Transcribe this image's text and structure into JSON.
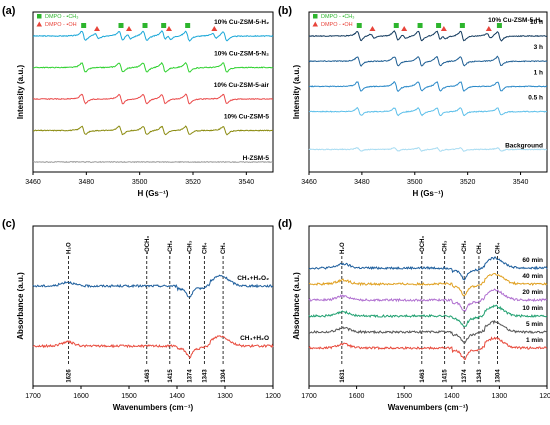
{
  "chart_data": [
    {
      "panel": "a",
      "type": "line",
      "xlabel": "H (Gs⁻¹)",
      "ylabel": "Intensity (a.u.)",
      "xlim": [
        3460,
        3550
      ],
      "xticks": [
        3460,
        3480,
        3500,
        3520,
        3540
      ],
      "legend": [
        {
          "label": "DMPO - •CH₃",
          "marker": "square",
          "color": "#2db52d"
        },
        {
          "label": "DMPO - •OH",
          "marker": "triangle",
          "color": "#e8443a"
        }
      ],
      "legend_position": "top-left",
      "ch3_marker_x": [
        3479,
        3493,
        3502,
        3509,
        3518
      ],
      "oh_marker_x": [
        3484,
        3496,
        3511,
        3528
      ],
      "series": [
        {
          "name": "10% Cu-ZSM-5-H₂",
          "color": "#1aa7d8",
          "offset": 4,
          "amp": 1.0,
          "line_x": [
            3479,
            3493,
            3502,
            3509,
            3518,
            3532
          ],
          "oh_x": [
            3484,
            3496,
            3511,
            3528
          ],
          "oh_amp": 0.55
        },
        {
          "name": "10% Cu-ZSM-5-N₂",
          "color": "#2fd12f",
          "offset": 3,
          "amp": 1.0,
          "line_x": [
            3479,
            3493,
            3502,
            3509,
            3518,
            3532
          ],
          "oh_x": [],
          "oh_amp": 0
        },
        {
          "name": "10% Cu-ZSM-5-air",
          "color": "#ea4a4a",
          "offset": 2,
          "amp": 1.0,
          "line_x": [
            3479,
            3493,
            3502,
            3509,
            3518,
            3532
          ],
          "oh_x": [],
          "oh_amp": 0
        },
        {
          "name": "10% Cu-ZSM-5",
          "color": "#8b8b10",
          "offset": 1,
          "amp": 0.9,
          "line_x": [
            3479,
            3493,
            3502,
            3509,
            3518,
            3532
          ],
          "oh_x": [],
          "oh_amp": 0
        },
        {
          "name": "H-ZSM-5",
          "color": "#9a9a9a",
          "offset": 0,
          "amp": 0.0,
          "line_x": [],
          "oh_x": [],
          "oh_amp": 0
        }
      ]
    },
    {
      "panel": "b",
      "type": "line",
      "title": "10% Cu-ZSM-5-H₂",
      "xlabel": "H (Gs⁻¹)",
      "ylabel": "Intensity (a.u.)",
      "xlim": [
        3460,
        3550
      ],
      "xticks": [
        3460,
        3480,
        3500,
        3520,
        3540
      ],
      "legend": [
        {
          "label": "DMPO - •CH₃",
          "marker": "square",
          "color": "#2db52d"
        },
        {
          "label": "DMPO - •OH",
          "marker": "triangle",
          "color": "#e8443a"
        }
      ],
      "legend_position": "top-left",
      "ch3_marker_x": [
        3479,
        3493,
        3502,
        3509,
        3518,
        3532
      ],
      "oh_marker_x": [
        3484,
        3496,
        3511,
        3528
      ],
      "series": [
        {
          "name": "10 h",
          "color": "#123a5e",
          "offset": 5,
          "amp": 1.0,
          "line_x": [
            3479,
            3493,
            3502,
            3509,
            3518,
            3532
          ],
          "oh_x": [
            3484,
            3496,
            3511,
            3528
          ],
          "oh_amp": 0.45
        },
        {
          "name": "3 h",
          "color": "#1f5f94",
          "offset": 4,
          "amp": 1.0,
          "line_x": [
            3479,
            3493,
            3502,
            3509,
            3518,
            3532
          ],
          "oh_x": [],
          "oh_amp": 0
        },
        {
          "name": "1 h",
          "color": "#2a89c8",
          "offset": 3,
          "amp": 1.0,
          "line_x": [
            3479,
            3493,
            3502,
            3509,
            3518,
            3532
          ],
          "oh_x": [],
          "oh_amp": 0
        },
        {
          "name": "0.5 h",
          "color": "#5ec0ea",
          "offset": 2,
          "amp": 0.8,
          "line_x": [
            3479,
            3493,
            3502,
            3509,
            3518,
            3532
          ],
          "oh_x": [],
          "oh_amp": 0
        },
        {
          "name": "Background",
          "color": "#a8dcf2",
          "offset": 0.5,
          "amp": 0.35,
          "line_x": [
            3479,
            3493,
            3502,
            3509,
            3518,
            3532
          ],
          "oh_x": [],
          "oh_amp": 0
        }
      ]
    },
    {
      "panel": "c",
      "type": "line",
      "xlabel": "Wavenumbers (cm⁻¹)",
      "ylabel": "Absorbance (a.u.)",
      "xlim": [
        1700,
        1200
      ],
      "xticks": [
        1700,
        1600,
        1500,
        1400,
        1300,
        1200
      ],
      "dashed_lines": [
        {
          "x": 1626,
          "label": "1626",
          "top_label": "H₂O"
        },
        {
          "x": 1463,
          "label": "1463",
          "top_label": "•OCH₃"
        },
        {
          "x": 1415,
          "label": "1415",
          "top_label": "•CH₃"
        },
        {
          "x": 1374,
          "label": "1374",
          "top_label": "•CH₃"
        },
        {
          "x": 1343,
          "label": "1343",
          "top_label": "CH₄"
        },
        {
          "x": 1304,
          "label": "1304",
          "top_label": "CH₄"
        }
      ],
      "series": [
        {
          "name": "CH₄+H₂O₂",
          "color": "#1c5d9c"
        },
        {
          "name": "CH₄+H₂O",
          "color": "#e84a3c"
        }
      ]
    },
    {
      "panel": "d",
      "type": "line",
      "xlabel": "Wavenumbers (cm⁻¹)",
      "ylabel": "Absorbance (a.u.)",
      "xlim": [
        1700,
        1200
      ],
      "xticks": [
        1700,
        1600,
        1500,
        1400,
        1300,
        1200
      ],
      "dashed_lines": [
        {
          "x": 1631,
          "label": "1631",
          "top_label": "H₂O"
        },
        {
          "x": 1463,
          "label": "1463",
          "top_label": "•OCH₃"
        },
        {
          "x": 1415,
          "label": "1415",
          "top_label": "•CH₃"
        },
        {
          "x": 1374,
          "label": "1374",
          "top_label": "•CH₃"
        },
        {
          "x": 1343,
          "label": "1343",
          "top_label": "CH₄"
        },
        {
          "x": 1304,
          "label": "1304",
          "top_label": "CH₄"
        }
      ],
      "series": [
        {
          "name": "60 min",
          "color": "#1c5d9c"
        },
        {
          "name": "40 min",
          "color": "#e0a020"
        },
        {
          "name": "20 min",
          "color": "#b070d0"
        },
        {
          "name": "10 min",
          "color": "#20a070"
        },
        {
          "name": "5 min",
          "color": "#555555"
        },
        {
          "name": "1 min",
          "color": "#e84a3c"
        }
      ]
    }
  ]
}
